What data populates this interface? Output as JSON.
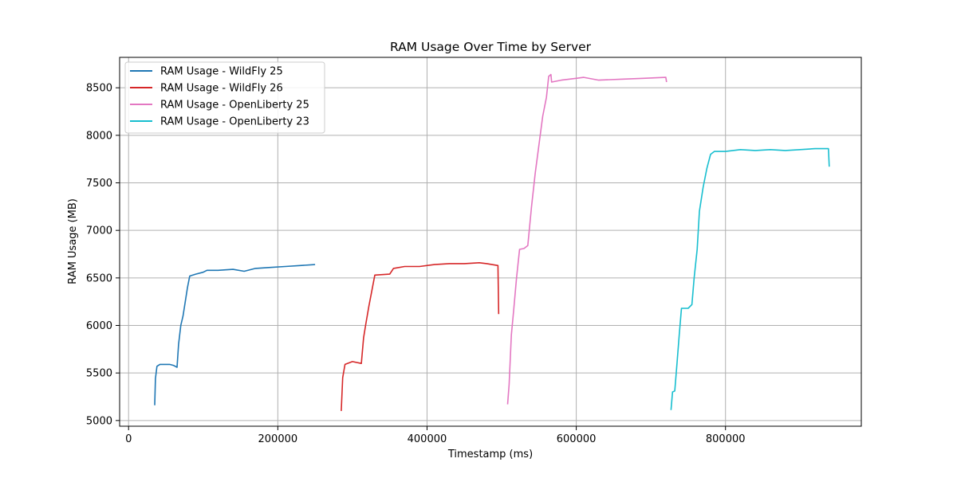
{
  "chart_data": {
    "type": "line",
    "title": "RAM Usage Over Time by Server",
    "xlabel": "Timestamp (ms)",
    "ylabel": "RAM Usage (MB)",
    "xlim": [
      -12000,
      982000
    ],
    "ylim": [
      4940,
      8820
    ],
    "xticks": [
      0,
      200000,
      400000,
      600000,
      800000
    ],
    "yticks": [
      5000,
      5500,
      6000,
      6500,
      7000,
      7500,
      8000,
      8500
    ],
    "grid": true,
    "legend_position": "top-left",
    "series": [
      {
        "name": "RAM Usage - WildFly 25",
        "color": "#1f77b4",
        "points": [
          [
            35000,
            5160
          ],
          [
            36000,
            5440
          ],
          [
            38000,
            5570
          ],
          [
            42000,
            5590
          ],
          [
            55000,
            5590
          ],
          [
            60000,
            5580
          ],
          [
            65000,
            5560
          ],
          [
            67000,
            5800
          ],
          [
            70000,
            6000
          ],
          [
            73000,
            6100
          ],
          [
            76000,
            6250
          ],
          [
            79000,
            6400
          ],
          [
            82000,
            6520
          ],
          [
            90000,
            6540
          ],
          [
            100000,
            6560
          ],
          [
            105000,
            6580
          ],
          [
            120000,
            6580
          ],
          [
            140000,
            6590
          ],
          [
            155000,
            6570
          ],
          [
            170000,
            6600
          ],
          [
            190000,
            6610
          ],
          [
            210000,
            6620
          ],
          [
            230000,
            6630
          ],
          [
            250000,
            6640
          ]
        ]
      },
      {
        "name": "RAM Usage - WildFly 26",
        "color": "#d62728",
        "points": [
          [
            285000,
            5100
          ],
          [
            287000,
            5450
          ],
          [
            290000,
            5590
          ],
          [
            300000,
            5620
          ],
          [
            312000,
            5600
          ],
          [
            315000,
            5870
          ],
          [
            318000,
            6020
          ],
          [
            322000,
            6200
          ],
          [
            330000,
            6530
          ],
          [
            350000,
            6540
          ],
          [
            355000,
            6600
          ],
          [
            370000,
            6620
          ],
          [
            390000,
            6620
          ],
          [
            410000,
            6640
          ],
          [
            430000,
            6650
          ],
          [
            450000,
            6650
          ],
          [
            470000,
            6660
          ],
          [
            480000,
            6650
          ],
          [
            495000,
            6630
          ],
          [
            496000,
            6120
          ]
        ]
      },
      {
        "name": "RAM Usage - OpenLiberty 25",
        "color": "#e377c2",
        "points": [
          [
            508000,
            5170
          ],
          [
            510000,
            5380
          ],
          [
            513000,
            5900
          ],
          [
            516000,
            6150
          ],
          [
            520000,
            6500
          ],
          [
            524000,
            6800
          ],
          [
            530000,
            6810
          ],
          [
            535000,
            6840
          ],
          [
            540000,
            7250
          ],
          [
            545000,
            7600
          ],
          [
            550000,
            7900
          ],
          [
            555000,
            8200
          ],
          [
            560000,
            8400
          ],
          [
            563000,
            8620
          ],
          [
            566000,
            8640
          ],
          [
            567000,
            8560
          ],
          [
            580000,
            8580
          ],
          [
            600000,
            8600
          ],
          [
            610000,
            8610
          ],
          [
            630000,
            8580
          ],
          [
            660000,
            8590
          ],
          [
            690000,
            8600
          ],
          [
            720000,
            8610
          ],
          [
            721000,
            8560
          ]
        ]
      },
      {
        "name": "RAM Usage - OpenLiberty 23",
        "color": "#17becf",
        "points": [
          [
            727000,
            5110
          ],
          [
            729000,
            5300
          ],
          [
            732000,
            5310
          ],
          [
            735000,
            5600
          ],
          [
            738000,
            5900
          ],
          [
            741000,
            6180
          ],
          [
            750000,
            6180
          ],
          [
            755000,
            6220
          ],
          [
            758000,
            6500
          ],
          [
            762000,
            6800
          ],
          [
            765000,
            7200
          ],
          [
            770000,
            7450
          ],
          [
            775000,
            7650
          ],
          [
            780000,
            7800
          ],
          [
            785000,
            7830
          ],
          [
            800000,
            7830
          ],
          [
            820000,
            7850
          ],
          [
            840000,
            7840
          ],
          [
            860000,
            7850
          ],
          [
            880000,
            7840
          ],
          [
            900000,
            7850
          ],
          [
            920000,
            7860
          ],
          [
            938000,
            7860
          ],
          [
            939000,
            7670
          ]
        ]
      }
    ]
  }
}
